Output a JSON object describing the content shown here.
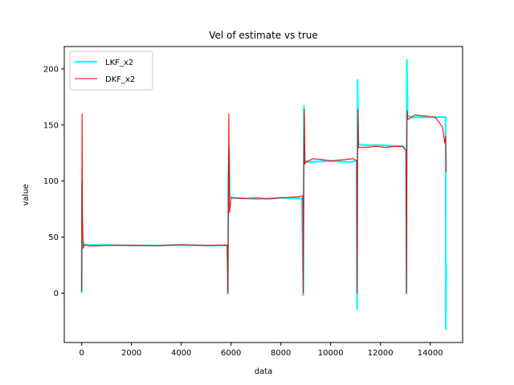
{
  "chart_data": {
    "type": "line",
    "title": "Vel of estimate vs true",
    "xlabel": "data",
    "ylabel": "value",
    "xlim": [
      -700,
      15300
    ],
    "ylim": [
      -44,
      220
    ],
    "xticks": [
      0,
      2000,
      4000,
      6000,
      8000,
      10000,
      12000,
      14000
    ],
    "yticks": [
      0,
      50,
      100,
      150,
      200
    ],
    "grid": false,
    "legend_position": "top-left",
    "series": [
      {
        "name": "LKF_x2",
        "color": "#00ffff",
        "points": [
          [
            0,
            0
          ],
          [
            15,
            100
          ],
          [
            30,
            50
          ],
          [
            60,
            44
          ],
          [
            200,
            43
          ],
          [
            1000,
            43
          ],
          [
            2000,
            42.5
          ],
          [
            3000,
            42.5
          ],
          [
            4000,
            43
          ],
          [
            5000,
            42.5
          ],
          [
            5850,
            42.5
          ],
          [
            5870,
            0
          ],
          [
            5890,
            105
          ],
          [
            5920,
            128
          ],
          [
            5950,
            86
          ],
          [
            6100,
            85
          ],
          [
            7000,
            84
          ],
          [
            8000,
            85
          ],
          [
            8850,
            84.5
          ],
          [
            8900,
            -2
          ],
          [
            8930,
            167
          ],
          [
            8960,
            118
          ],
          [
            9100,
            117
          ],
          [
            10000,
            118
          ],
          [
            10800,
            117
          ],
          [
            11040,
            118
          ],
          [
            11060,
            -14
          ],
          [
            11080,
            190
          ],
          [
            11110,
            133
          ],
          [
            11300,
            132
          ],
          [
            12000,
            132
          ],
          [
            12900,
            131
          ],
          [
            13030,
            128
          ],
          [
            13045,
            0
          ],
          [
            13060,
            208
          ],
          [
            13090,
            158
          ],
          [
            13300,
            157
          ],
          [
            14000,
            157
          ],
          [
            14620,
            157
          ],
          [
            14625,
            -32
          ],
          [
            14640,
            25
          ]
        ]
      },
      {
        "name": "DKF_x2",
        "color": "#ff0000",
        "points": [
          [
            0,
            2
          ],
          [
            15,
            160
          ],
          [
            30,
            70
          ],
          [
            60,
            40
          ],
          [
            100,
            43
          ],
          [
            400,
            42
          ],
          [
            1000,
            42.5
          ],
          [
            2000,
            42.8
          ],
          [
            3000,
            42.3
          ],
          [
            4000,
            43.2
          ],
          [
            5000,
            42.5
          ],
          [
            5850,
            43
          ],
          [
            5870,
            0
          ],
          [
            5890,
            70
          ],
          [
            5910,
            160
          ],
          [
            5940,
            72
          ],
          [
            6000,
            85
          ],
          [
            6500,
            84.5
          ],
          [
            7000,
            85
          ],
          [
            7500,
            84
          ],
          [
            8000,
            85
          ],
          [
            8700,
            86
          ],
          [
            8880,
            87
          ],
          [
            8900,
            0
          ],
          [
            8920,
            110
          ],
          [
            8940,
            164
          ],
          [
            8960,
            115
          ],
          [
            9000,
            117
          ],
          [
            9300,
            120
          ],
          [
            9700,
            119
          ],
          [
            10000,
            118
          ],
          [
            10500,
            119
          ],
          [
            10900,
            120
          ],
          [
            11050,
            118
          ],
          [
            11065,
            0
          ],
          [
            11080,
            120
          ],
          [
            11100,
            164
          ],
          [
            11120,
            130
          ],
          [
            11400,
            130
          ],
          [
            11800,
            131
          ],
          [
            12200,
            130
          ],
          [
            12600,
            131
          ],
          [
            12900,
            131
          ],
          [
            13030,
            127
          ],
          [
            13045,
            0
          ],
          [
            13060,
            130
          ],
          [
            13075,
            163
          ],
          [
            13100,
            155
          ],
          [
            13400,
            159
          ],
          [
            13800,
            158
          ],
          [
            14200,
            157
          ],
          [
            14500,
            148
          ],
          [
            14580,
            134
          ],
          [
            14620,
            140
          ],
          [
            14640,
            108
          ]
        ]
      }
    ]
  }
}
